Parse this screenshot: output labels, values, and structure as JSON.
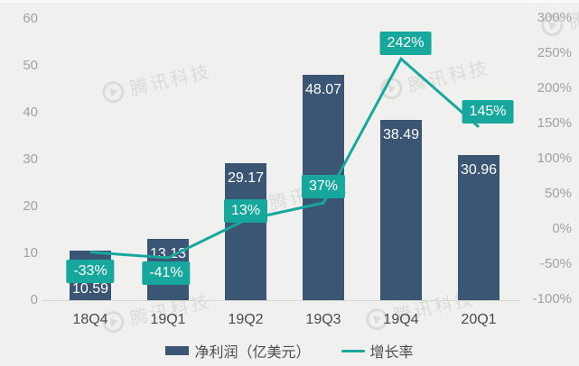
{
  "watermark": {
    "text": "腾讯科技"
  },
  "chart_data": {
    "type": "combo",
    "categories": [
      "18Q4",
      "19Q1",
      "19Q2",
      "19Q3",
      "19Q4",
      "20Q1"
    ],
    "series": [
      {
        "name": "净利润（亿美元）",
        "type": "bar",
        "axis": "left",
        "values": [
          10.59,
          13.13,
          29.17,
          48.07,
          38.49,
          30.96
        ],
        "labels": [
          "10.59",
          "13.13",
          "29.17",
          "48.07",
          "38.49",
          "30.96"
        ],
        "color": "#3b5674"
      },
      {
        "name": "增长率",
        "type": "line",
        "axis": "right",
        "values": [
          -33,
          -41,
          13,
          37,
          242,
          145
        ],
        "labels": [
          "-33%",
          "-41%",
          "13%",
          "37%",
          "242%",
          "145%"
        ],
        "color": "#17a79d"
      }
    ],
    "left_axis": {
      "min": 0,
      "max": 60,
      "ticks": [
        0,
        10,
        20,
        30,
        40,
        50,
        60
      ]
    },
    "right_axis": {
      "min": -100,
      "max": 300,
      "tick_values": [
        -100,
        -50,
        0,
        50,
        100,
        150,
        200,
        250,
        300
      ],
      "tick_labels": [
        "-100%",
        "-50%",
        "0%",
        "50%",
        "100%",
        "150%",
        "200%",
        "250%",
        "300%"
      ]
    },
    "grid": false,
    "legend_position": "bottom"
  },
  "colors": {
    "background": "#f0f0ee",
    "bar": "#3b5674",
    "line": "#17a79d",
    "growth_label_bg": "#17a79d",
    "growth_label_text": "#ffffff",
    "bar_label_text": "#ffffff",
    "axis_text": "#a2a2a0",
    "category_text": "#4a4a4a",
    "legend_text": "#4a4f57",
    "baseline": "#d6d6d4"
  }
}
